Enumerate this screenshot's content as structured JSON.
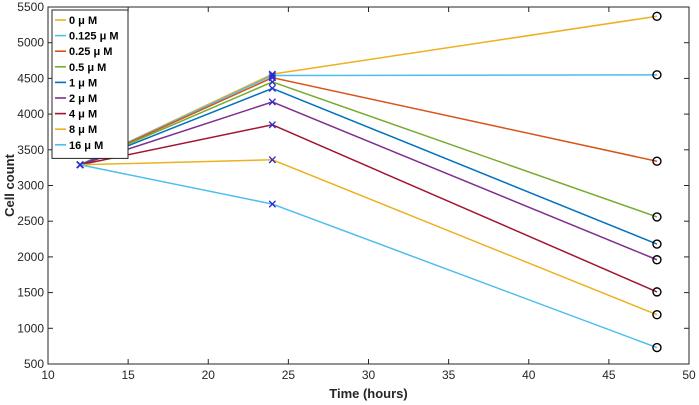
{
  "chart_data": {
    "type": "line",
    "title": "",
    "xlabel": "Time (hours)",
    "ylabel": "Cell count",
    "xlim": [
      10,
      50
    ],
    "ylim": [
      500,
      5500
    ],
    "xticks": [
      10,
      15,
      20,
      25,
      30,
      35,
      40,
      45,
      50
    ],
    "yticks": [
      500,
      1000,
      1500,
      2000,
      2500,
      3000,
      3500,
      4000,
      4500,
      5000,
      5500
    ],
    "grid": false,
    "legend_position": "top-left",
    "x": [
      12,
      24,
      48
    ],
    "series": [
      {
        "name": "0 μ M",
        "color": "#EDB120",
        "values": [
          3290,
          4560,
          5370
        ]
      },
      {
        "name": "0.125 μ M",
        "color": "#4DBEEE",
        "values": [
          3290,
          4540,
          4550
        ]
      },
      {
        "name": "0.25 μ M",
        "color": "#D95319",
        "values": [
          3290,
          4510,
          3340
        ]
      },
      {
        "name": "0.5 μ M",
        "color": "#77AC30",
        "values": [
          3290,
          4450,
          2560
        ]
      },
      {
        "name": "1 μ M",
        "color": "#0072BD",
        "values": [
          3290,
          4360,
          2180
        ]
      },
      {
        "name": "2 μ M",
        "color": "#7E2F8E",
        "values": [
          3290,
          4170,
          1960
        ]
      },
      {
        "name": "4 μ M",
        "color": "#A2142F",
        "values": [
          3290,
          3850,
          1510
        ]
      },
      {
        "name": "8 μ M",
        "color": "#EDB120",
        "values": [
          3290,
          3360,
          1190
        ]
      },
      {
        "name": "16 μ M",
        "color": "#4DBEEE",
        "values": [
          3290,
          2740,
          730
        ]
      }
    ]
  }
}
